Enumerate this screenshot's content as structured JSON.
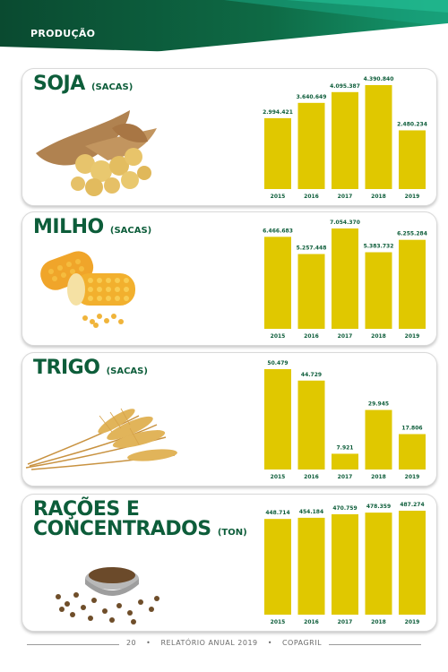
{
  "header": {
    "title": "PRODUÇÃO"
  },
  "sections": [
    {
      "title": "SOJA",
      "unit": "(SACAS)"
    },
    {
      "title": "MILHO",
      "unit": "(SACAS)"
    },
    {
      "title": "TRIGO",
      "unit": "(SACAS)"
    },
    {
      "title": "RAÇÕES E",
      "title2": "CONCENTRADOS",
      "unit": "(TON)"
    }
  ],
  "footer": {
    "page": "20",
    "text": "RELATÓRIO ANUAL 2019",
    "brand": "COPAGRIL",
    "sep": "•"
  },
  "colors": {
    "bar": "#e0c800",
    "title": "#0d5d3a",
    "header_dark": "#0b4f34",
    "header_light": "#1aa884"
  },
  "chart_data": [
    {
      "type": "bar",
      "title": "SOJA (SACAS)",
      "categories": [
        "2015",
        "2016",
        "2017",
        "2018",
        "2019"
      ],
      "values": [
        2994421,
        3640649,
        4095387,
        4390840,
        2480234
      ],
      "labels": [
        "2.994.421",
        "3.640.649",
        "4.095.387",
        "4.390.840",
        "2.480.234"
      ]
    },
    {
      "type": "bar",
      "title": "MILHO (SACAS)",
      "categories": [
        "2015",
        "2016",
        "2017",
        "2018",
        "2019"
      ],
      "values": [
        6466683,
        5257448,
        7054370,
        5383732,
        6255284
      ],
      "labels": [
        "6.466.683",
        "5.257.448",
        "7.054.370",
        "5.383.732",
        "6.255.284"
      ]
    },
    {
      "type": "bar",
      "title": "TRIGO (SACAS)",
      "categories": [
        "2015",
        "2016",
        "2017",
        "2018",
        "2019"
      ],
      "values": [
        50479,
        44729,
        7921,
        29945,
        17806
      ],
      "labels": [
        "50.479",
        "44.729",
        "7.921",
        "29.945",
        "17.806"
      ]
    },
    {
      "type": "bar",
      "title": "RAÇÕES E CONCENTRADOS (TON)",
      "categories": [
        "2015",
        "2016",
        "2017",
        "2018",
        "2019"
      ],
      "values": [
        448714,
        454184,
        470759,
        478359,
        487274
      ],
      "labels": [
        "448.714",
        "454.184",
        "470.759",
        "478.359",
        "487.274"
      ]
    }
  ]
}
